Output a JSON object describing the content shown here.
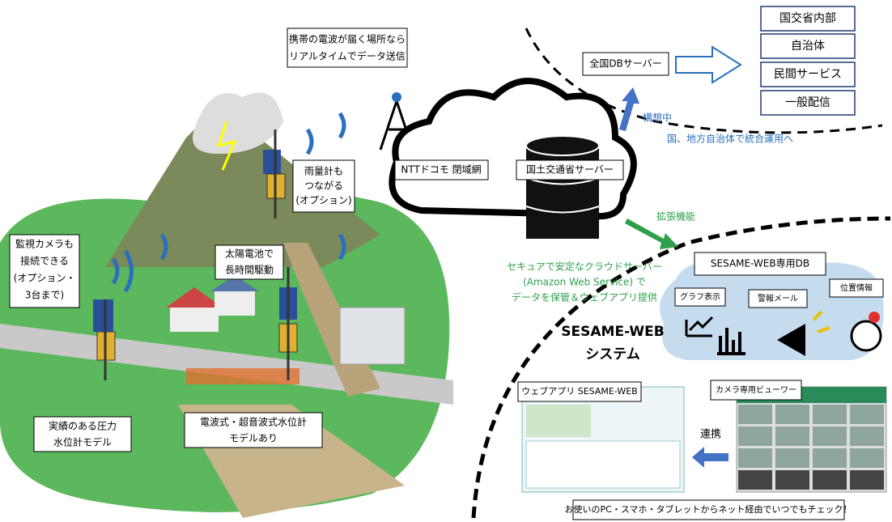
{
  "callouts": {
    "mobile": [
      "携帯の電波が届く場所なら",
      "リアルタイムでデータ送信"
    ],
    "rain_gauge": [
      "雨量計も",
      "つながる",
      "(オプション)"
    ],
    "camera": [
      "監視カメラも",
      "接続できる",
      "(オプション・",
      "3台まで)"
    ],
    "solar": [
      "太陽電池で",
      "長時間駆動"
    ],
    "pressure": [
      "実績のある圧力",
      "水位計モデル"
    ],
    "radar": [
      "電波式・超音波式水位計",
      "モデルあり"
    ]
  },
  "network": {
    "docomo": "NTTドコモ 閉域網",
    "mlit_server": "国土交通省サーバー",
    "cloud_note": [
      "セキュアで安定なクラウドサーバー",
      "(Amazon Web Service) で",
      "データを保管＆ウェブアプリ提供"
    ]
  },
  "future": {
    "national_db": "全国DBサーバー",
    "targets": [
      "国交省内部",
      "自治体",
      "民間サービス",
      "一般配信"
    ],
    "plan": "構想中",
    "integration": "国、地方自治体で統合運用へ"
  },
  "system": {
    "extension": "拡張機能",
    "db": "SESAME-WEB専用DB",
    "features": [
      "グラフ表示",
      "警報メール",
      "位置情報"
    ],
    "name": [
      "SESAME-WEB",
      "システム"
    ],
    "webapp": "ウェブアプリ SESAME-WEB",
    "viewer": "カメラ専用ビューワー",
    "link": "連携",
    "footer": "お使いのPC・スマホ・タブレットからネット経由でいつでもチェック！"
  }
}
